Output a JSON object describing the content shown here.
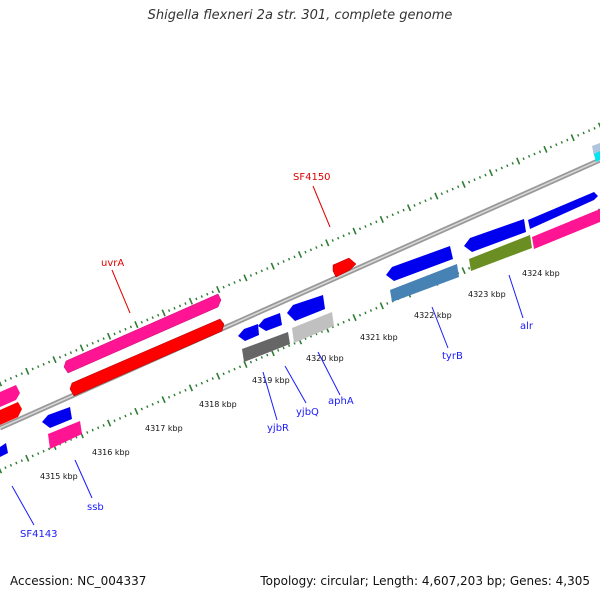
{
  "header": {
    "title": "Shigella flexneri 2a str. 301, complete genome"
  },
  "footer": {
    "accession": "Accession: NC_004337",
    "summary": "Topology: circular; Length: 4,607,203 bp; Genes: 4,305"
  },
  "colors": {
    "backbone": "#8c8c8c",
    "tick": "#2e7d32",
    "line_blue": "#1a1aff",
    "line_red": "#e00000"
  },
  "kbp_labels": [
    "4315 kbp",
    "4316 kbp",
    "4317 kbp",
    "4318 kbp",
    "4319 kbp",
    "4320 kbp",
    "4321 kbp",
    "4322 kbp",
    "4323 kbp",
    "4324 kbp"
  ],
  "features": [
    {
      "name": "uvrA",
      "color": "#ff1493",
      "track": "upper-outer"
    },
    {
      "name": "",
      "color": "#ff0000",
      "track": "upper-inner"
    },
    {
      "name": "SF4150",
      "color": "#ff0000",
      "track": "upper-inner"
    },
    {
      "name": "",
      "color": "#0000ee",
      "track": "upper-outer"
    },
    {
      "name": "",
      "color": "#ff1493",
      "track": "upper-inner"
    },
    {
      "name": "",
      "color": "#b0c4de",
      "track": "upper-outer"
    },
    {
      "name": "ssb",
      "color": "#ff1493",
      "track": "lower-outer"
    },
    {
      "name": "",
      "color": "#0000ee",
      "track": "lower-inner"
    },
    {
      "name": "yjbR",
      "color": "#0000ee",
      "track": "lower-inner"
    },
    {
      "name": "yjbQ",
      "color": "#0000ee",
      "track": "lower-inner"
    },
    {
      "name": "aphA",
      "color": "#0000ee",
      "track": "lower-inner"
    },
    {
      "name": "",
      "color": "#666666",
      "track": "lower-outer"
    },
    {
      "name": "",
      "color": "#c0c0c0",
      "track": "lower-outer"
    },
    {
      "name": "tyrB",
      "color": "#0000ee",
      "track": "lower-inner"
    },
    {
      "name": "",
      "color": "#4682b4",
      "track": "lower-outer"
    },
    {
      "name": "alr",
      "color": "#0000ee",
      "track": "lower-inner"
    },
    {
      "name": "",
      "color": "#6b8e23",
      "track": "lower-outer"
    },
    {
      "name": "",
      "color": "#0000ee",
      "track": "lower-inner"
    },
    {
      "name": "SF4143",
      "color": "#0000ee",
      "track": "lower-inner"
    },
    {
      "name": "",
      "color": "#0000ee",
      "track": "lower-inner"
    },
    {
      "name": "",
      "color": "#ff1493",
      "track": "upper-outer"
    },
    {
      "name": "",
      "color": "#ff0000",
      "track": "upper-inner"
    }
  ]
}
